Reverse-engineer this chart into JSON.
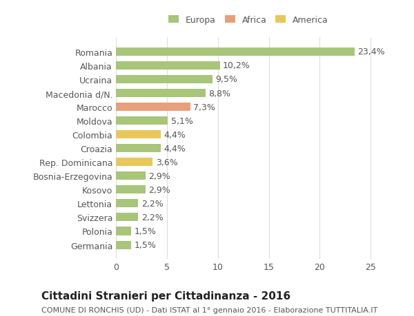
{
  "categories": [
    "Romania",
    "Albania",
    "Ucraina",
    "Macedonia d/N.",
    "Marocco",
    "Moldova",
    "Colombia",
    "Croazia",
    "Rep. Dominicana",
    "Bosnia-Erzegovina",
    "Kosovo",
    "Lettonia",
    "Svizzera",
    "Polonia",
    "Germania"
  ],
  "values": [
    23.4,
    10.2,
    9.5,
    8.8,
    7.3,
    5.1,
    4.4,
    4.4,
    3.6,
    2.9,
    2.9,
    2.2,
    2.2,
    1.5,
    1.5
  ],
  "labels": [
    "23,4%",
    "10,2%",
    "9,5%",
    "8,8%",
    "7,3%",
    "5,1%",
    "4,4%",
    "4,4%",
    "3,6%",
    "2,9%",
    "2,9%",
    "2,2%",
    "2,2%",
    "1,5%",
    "1,5%"
  ],
  "bar_colors": [
    "#a8c57a",
    "#a8c57a",
    "#a8c57a",
    "#a8c57a",
    "#e8a07a",
    "#a8c57a",
    "#e8c85a",
    "#a8c57a",
    "#e8c85a",
    "#a8c57a",
    "#a8c57a",
    "#a8c57a",
    "#a8c57a",
    "#a8c57a",
    "#a8c57a"
  ],
  "continent": [
    "Europa",
    "Europa",
    "Europa",
    "Europa",
    "Africa",
    "Europa",
    "America",
    "Europa",
    "America",
    "Europa",
    "Europa",
    "Europa",
    "Europa",
    "Europa",
    "Europa"
  ],
  "legend_colors": {
    "Europa": "#a8c57a",
    "Africa": "#e8a07a",
    "America": "#e8c85a"
  },
  "title": "Cittadini Stranieri per Cittadinanza - 2016",
  "subtitle": "COMUNE DI RONCHIS (UD) - Dati ISTAT al 1° gennaio 2016 - Elaborazione TUTTITALIA.IT",
  "xlim": [
    0,
    26
  ],
  "xticks": [
    0,
    5,
    10,
    15,
    20,
    25
  ],
  "background_color": "#ffffff",
  "grid_color": "#dddddd",
  "bar_height": 0.6,
  "label_fontsize": 9,
  "tick_fontsize": 9,
  "title_fontsize": 11,
  "subtitle_fontsize": 8
}
